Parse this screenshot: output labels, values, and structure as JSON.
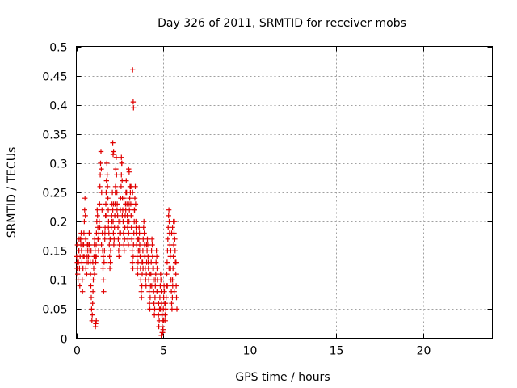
{
  "chart_data": {
    "type": "scatter",
    "title": "Day 326 of 2011, SRMTID for receiver mobs",
    "xlabel": "GPS time / hours",
    "ylabel": "SRMTID / TECUs",
    "xlim": [
      0,
      24
    ],
    "ylim": [
      0,
      0.5
    ],
    "xticks": [
      0,
      5,
      10,
      15,
      20
    ],
    "yticks": [
      0,
      0.05,
      0.1,
      0.15,
      0.2,
      0.25,
      0.3,
      0.35,
      0.4,
      0.45,
      0.5
    ],
    "xtick_labels": [
      "0",
      "5",
      "10",
      "15",
      "20"
    ],
    "ytick_labels": [
      "0",
      "0.05",
      "0.1",
      "0.15",
      "0.2",
      "0.25",
      "0.3",
      "0.35",
      "0.4",
      "0.45",
      "0.5"
    ],
    "grid": true,
    "marker": "plus",
    "color": "#e00000",
    "series": [
      {
        "x": [
          0.02,
          0.04,
          0.06,
          0.08,
          0.1,
          0.12,
          0.14,
          0.16,
          0.18,
          0.2,
          0.22,
          0.24,
          0.26,
          0.28,
          0.3,
          0.32,
          0.34,
          0.36,
          0.38,
          0.4,
          0.42,
          0.44,
          0.46,
          0.48,
          0.5,
          0.52,
          0.54,
          0.56,
          0.58,
          0.6,
          0.62,
          0.64,
          0.66,
          0.68,
          0.7,
          0.72,
          0.74,
          0.76,
          0.78,
          0.8,
          0.82,
          0.84,
          0.86,
          0.88,
          0.9,
          0.92,
          0.94,
          0.96,
          0.98,
          1.0,
          1.02,
          1.04,
          1.06,
          1.08,
          1.1,
          1.12,
          1.14,
          1.16,
          1.18,
          1.2,
          1.22,
          1.24,
          1.26,
          1.28,
          1.3,
          1.32,
          1.34,
          1.36,
          1.38,
          1.4,
          1.42,
          1.44,
          1.46,
          1.48,
          1.5,
          1.52,
          1.54,
          1.56,
          1.58,
          1.6,
          1.62,
          1.64,
          1.66,
          1.68,
          1.7,
          1.72,
          1.74,
          1.76,
          1.78,
          1.8,
          1.82,
          1.84,
          1.86,
          1.88,
          1.9,
          1.92,
          1.94,
          1.96,
          1.98,
          2.0,
          2.02,
          2.04,
          2.06,
          2.08,
          2.1,
          2.12,
          2.14,
          2.16,
          2.18,
          2.2,
          2.22,
          2.24,
          2.26,
          2.28,
          2.3,
          2.32,
          2.34,
          2.36,
          2.38,
          2.4,
          2.42,
          2.44,
          2.46,
          2.48,
          2.5,
          2.52,
          2.54,
          2.56,
          2.58,
          2.6,
          2.62,
          2.64,
          2.66,
          2.68,
          2.7,
          2.72,
          2.74,
          2.76,
          2.78,
          2.8,
          2.82,
          2.84,
          2.86,
          2.88,
          2.9,
          2.92,
          2.94,
          2.96,
          2.98,
          3.0,
          3.02,
          3.04,
          3.06,
          3.08,
          3.1,
          3.12,
          3.14,
          3.16,
          3.18,
          3.2,
          3.22,
          3.24,
          3.26,
          3.28,
          3.3,
          3.32,
          3.34,
          3.36,
          3.38,
          3.4,
          3.42,
          3.44,
          3.46,
          3.48,
          3.5,
          3.52,
          3.54,
          3.56,
          3.58,
          3.6,
          3.62,
          3.64,
          3.66,
          3.68,
          3.7,
          3.72,
          3.74,
          3.76,
          3.78,
          3.8,
          3.82,
          3.84,
          3.86,
          3.88,
          3.9,
          3.92,
          3.94,
          3.96,
          3.98,
          4.0,
          4.02,
          4.04,
          4.06,
          4.08,
          4.1,
          4.12,
          4.14,
          4.16,
          4.18,
          4.2,
          4.22,
          4.24,
          4.26,
          4.28,
          4.3,
          4.32,
          4.34,
          4.36,
          4.38,
          4.4,
          4.42,
          4.44,
          4.46,
          4.48,
          4.5,
          4.52,
          4.54,
          4.56,
          4.58,
          4.6,
          4.62,
          4.64,
          4.66,
          4.68,
          4.7,
          4.72,
          4.74,
          4.76,
          4.78,
          4.8,
          4.82,
          4.84,
          4.86,
          4.88,
          4.9,
          4.92,
          4.94,
          4.96,
          4.98,
          5.0,
          5.02,
          5.04,
          5.06,
          5.08,
          5.1,
          5.12,
          5.14,
          5.16,
          5.18,
          5.2,
          5.22,
          5.24,
          5.26,
          5.28,
          5.3,
          5.32,
          5.34,
          5.36,
          5.38,
          5.4,
          5.42,
          5.44,
          5.46,
          5.48,
          5.5,
          5.52,
          5.54,
          5.56,
          5.58,
          5.6,
          5.62,
          5.64,
          5.66,
          5.68,
          5.7,
          5.72,
          5.74,
          5.76,
          5.78,
          5.8,
          0.05,
          0.15,
          0.25,
          0.35,
          0.45,
          0.55,
          0.65,
          0.75,
          0.85,
          0.95,
          1.05,
          1.15,
          1.25,
          1.35,
          1.45,
          1.55,
          1.65,
          1.75,
          1.85,
          1.95,
          2.05,
          2.15,
          2.25,
          2.35,
          2.45,
          2.55,
          2.65,
          2.75,
          2.85,
          2.95,
          3.05,
          3.15,
          3.25,
          3.35,
          3.45,
          3.55,
          3.65,
          3.75,
          3.85,
          3.95,
          4.05,
          4.15,
          4.25,
          4.35,
          4.45,
          4.55,
          4.65,
          4.75,
          4.85,
          4.95,
          5.05,
          5.15,
          5.25,
          5.35,
          5.45,
          5.55,
          5.65,
          5.75,
          3.25,
          3.28,
          3.3,
          2.1,
          2.12,
          2.15,
          2.6,
          2.63,
          3.02,
          3.05,
          1.1,
          1.12,
          1.15,
          4.9,
          4.95,
          5.0,
          5.5,
          5.55,
          5.6
        ],
        "y": [
          0.14,
          0.12,
          0.16,
          0.11,
          0.1,
          0.13,
          0.15,
          0.17,
          0.12,
          0.09,
          0.14,
          0.17,
          0.16,
          0.18,
          0.15,
          0.13,
          0.1,
          0.08,
          0.12,
          0.14,
          0.16,
          0.18,
          0.2,
          0.22,
          0.24,
          0.21,
          0.17,
          0.15,
          0.13,
          0.11,
          0.14,
          0.16,
          0.15,
          0.13,
          0.14,
          0.16,
          0.18,
          0.16,
          0.15,
          0.13,
          0.11,
          0.09,
          0.07,
          0.05,
          0.03,
          0.04,
          0.06,
          0.08,
          0.1,
          0.12,
          0.14,
          0.16,
          0.17,
          0.15,
          0.14,
          0.13,
          0.16,
          0.18,
          0.2,
          0.22,
          0.21,
          0.19,
          0.17,
          0.15,
          0.18,
          0.2,
          0.23,
          0.26,
          0.28,
          0.3,
          0.32,
          0.29,
          0.25,
          0.22,
          0.18,
          0.15,
          0.12,
          0.1,
          0.08,
          0.13,
          0.15,
          0.17,
          0.19,
          0.21,
          0.23,
          0.25,
          0.27,
          0.3,
          0.28,
          0.26,
          0.24,
          0.22,
          0.2,
          0.18,
          0.16,
          0.14,
          0.12,
          0.13,
          0.15,
          0.17,
          0.19,
          0.21,
          0.23,
          0.25,
          0.22,
          0.2,
          0.18,
          0.16,
          0.17,
          0.19,
          0.21,
          0.23,
          0.26,
          0.29,
          0.31,
          0.28,
          0.25,
          0.23,
          0.21,
          0.19,
          0.17,
          0.15,
          0.14,
          0.16,
          0.18,
          0.2,
          0.22,
          0.24,
          0.26,
          0.28,
          0.3,
          0.27,
          0.24,
          0.22,
          0.2,
          0.18,
          0.16,
          0.15,
          0.17,
          0.19,
          0.21,
          0.23,
          0.25,
          0.27,
          0.25,
          0.23,
          0.21,
          0.19,
          0.17,
          0.16,
          0.18,
          0.2,
          0.22,
          0.24,
          0.26,
          0.25,
          0.23,
          0.21,
          0.19,
          0.17,
          0.15,
          0.13,
          0.12,
          0.14,
          0.16,
          0.18,
          0.2,
          0.22,
          0.24,
          0.26,
          0.23,
          0.2,
          0.18,
          0.16,
          0.14,
          0.12,
          0.11,
          0.13,
          0.15,
          0.17,
          0.19,
          0.18,
          0.16,
          0.14,
          0.12,
          0.1,
          0.08,
          0.07,
          0.09,
          0.11,
          0.13,
          0.15,
          0.17,
          0.19,
          0.2,
          0.18,
          0.16,
          0.14,
          0.12,
          0.1,
          0.09,
          0.11,
          0.13,
          0.15,
          0.17,
          0.16,
          0.14,
          0.12,
          0.1,
          0.08,
          0.06,
          0.05,
          0.07,
          0.09,
          0.11,
          0.13,
          0.15,
          0.17,
          0.16,
          0.14,
          0.12,
          0.1,
          0.08,
          0.06,
          0.04,
          0.05,
          0.07,
          0.09,
          0.11,
          0.13,
          0.15,
          0.14,
          0.12,
          0.1,
          0.08,
          0.06,
          0.04,
          0.02,
          0.03,
          0.05,
          0.07,
          0.09,
          0.11,
          0.1,
          0.08,
          0.06,
          0.04,
          0.02,
          0.01,
          0.03,
          0.05,
          0.07,
          0.09,
          0.08,
          0.06,
          0.04,
          0.03,
          0.05,
          0.07,
          0.09,
          0.11,
          0.13,
          0.15,
          0.17,
          0.19,
          0.21,
          0.22,
          0.2,
          0.18,
          0.16,
          0.14,
          0.12,
          0.1,
          0.08,
          0.06,
          0.05,
          0.07,
          0.09,
          0.12,
          0.14,
          0.16,
          0.18,
          0.2,
          0.17,
          0.15,
          0.13,
          0.11,
          0.09,
          0.07,
          0.05,
          0.13,
          0.15,
          0.17,
          0.16,
          0.14,
          0.12,
          0.16,
          0.18,
          0.15,
          0.13,
          0.11,
          0.14,
          0.17,
          0.19,
          0.16,
          0.14,
          0.18,
          0.21,
          0.19,
          0.17,
          0.2,
          0.23,
          0.25,
          0.22,
          0.2,
          0.18,
          0.21,
          0.24,
          0.22,
          0.2,
          0.23,
          0.26,
          0.25,
          0.22,
          0.19,
          0.17,
          0.15,
          0.13,
          0.12,
          0.14,
          0.16,
          0.13,
          0.11,
          0.09,
          0.12,
          0.1,
          0.08,
          0.06,
          0.05,
          0.04,
          0.03,
          0.06,
          0.09,
          0.12,
          0.15,
          0.1,
          0.08,
          0.13,
          0.46,
          0.405,
          0.395,
          0.335,
          0.315,
          0.32,
          0.31,
          0.3,
          0.29,
          0.285,
          0.02,
          0.025,
          0.03,
          0.005,
          0.01,
          0.015,
          0.18,
          0.19,
          0.2
        ]
      }
    ]
  }
}
